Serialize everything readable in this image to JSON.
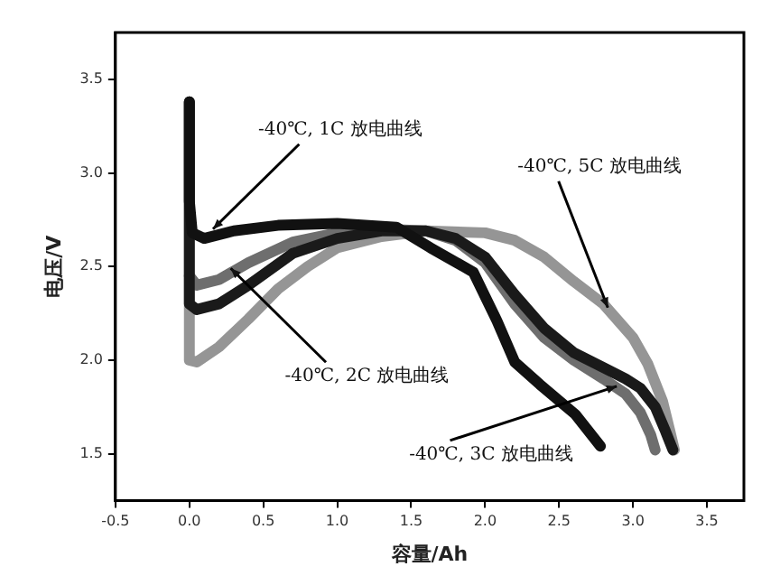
{
  "chart_data": {
    "type": "line",
    "xlabel": "容量/Ah",
    "ylabel": "电压/V",
    "xlim": [
      -0.5,
      3.75
    ],
    "ylim": [
      1.25,
      3.75
    ],
    "xticks": [
      -0.5,
      {
        "value": 0,
        "label": "0.0"
      },
      0.5,
      {
        "value": 1,
        "label": "1.0"
      },
      1.5,
      {
        "value": 2,
        "label": "2.0"
      },
      2.5,
      {
        "value": 3,
        "label": "3.0"
      },
      3.5
    ],
    "yticks": [
      1.5,
      {
        "value": 2,
        "label": "2.0"
      },
      2.5,
      {
        "value": 3,
        "label": "3.0"
      },
      3.5
    ],
    "grid": false,
    "legend": false,
    "marker": "none",
    "line_style": "solid",
    "series": [
      {
        "color": "#111111",
        "x": [
          0,
          0,
          0.02,
          0.1,
          0.3,
          0.6,
          1.0,
          1.4,
          1.63,
          1.92,
          2.08,
          2.2,
          2.37,
          2.61,
          2.78
        ],
        "values": [
          3.38,
          2.85,
          2.68,
          2.65,
          2.69,
          2.72,
          2.73,
          2.71,
          2.6,
          2.47,
          2.21,
          1.99,
          1.87,
          1.71,
          1.54
        ]
      },
      {
        "color": "#1a1a1a",
        "x": [
          0,
          0,
          0.05,
          0.2,
          0.4,
          0.7,
          1.0,
          1.3,
          1.6,
          1.8,
          2.0,
          2.2,
          2.4,
          2.6,
          2.8,
          2.95,
          3.05,
          3.15,
          3.22,
          3.27
        ],
        "values": [
          3.38,
          2.3,
          2.27,
          2.3,
          2.4,
          2.57,
          2.65,
          2.69,
          2.69,
          2.65,
          2.55,
          2.35,
          2.17,
          2.04,
          1.96,
          1.9,
          1.85,
          1.75,
          1.62,
          1.52
        ]
      },
      {
        "color": "#6e6e6e",
        "x": [
          0,
          0.05,
          0.2,
          0.4,
          0.7,
          1.0,
          1.3,
          1.6,
          1.8,
          2.0,
          2.2,
          2.4,
          2.6,
          2.8,
          2.95,
          3.05,
          3.12,
          3.15
        ],
        "values": [
          2.45,
          2.4,
          2.43,
          2.52,
          2.63,
          2.68,
          2.7,
          2.69,
          2.64,
          2.52,
          2.3,
          2.12,
          2.0,
          1.9,
          1.82,
          1.72,
          1.6,
          1.52
        ]
      },
      {
        "color": "#959595",
        "x": [
          0,
          0,
          0.05,
          0.2,
          0.4,
          0.6,
          0.8,
          1.0,
          1.3,
          1.6,
          2.0,
          2.2,
          2.4,
          2.6,
          2.8,
          3.0,
          3.1,
          3.2,
          3.25,
          3.28
        ],
        "values": [
          3.38,
          2.0,
          1.99,
          2.07,
          2.22,
          2.38,
          2.5,
          2.6,
          2.66,
          2.69,
          2.68,
          2.64,
          2.55,
          2.42,
          2.3,
          2.12,
          1.98,
          1.78,
          1.62,
          1.52
        ]
      }
    ],
    "annotations": [
      {
        "text": "-40℃, 1C 放电曲线",
        "x": 0.16,
        "y": 2.7
      },
      {
        "text": "-40℃, 2C 放电曲线",
        "x": 0.28,
        "y": 2.49
      },
      {
        "text": "-40℃, 5C 放电曲线",
        "x": 2.83,
        "y": 2.28
      },
      {
        "text": "-40℃, 3C 放电曲线",
        "x": 2.89,
        "y": 1.86
      }
    ]
  }
}
